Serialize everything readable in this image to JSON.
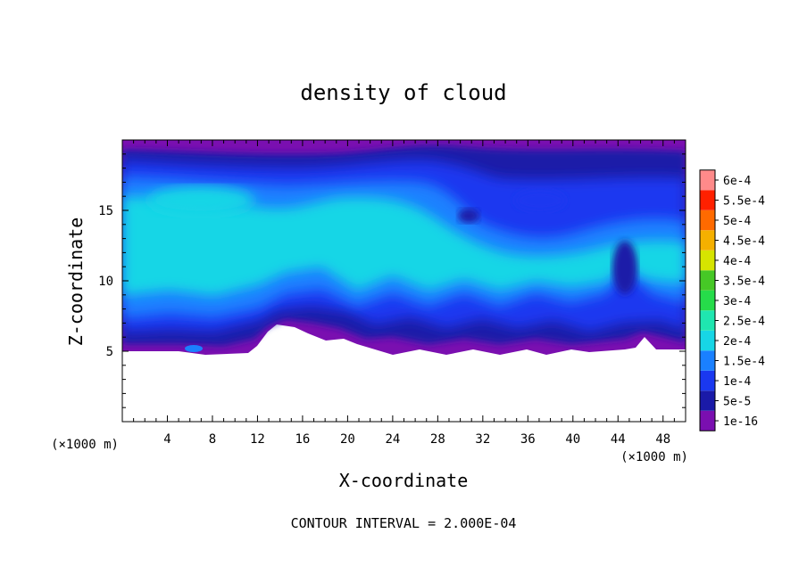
{
  "chart_data": {
    "type": "heatmap",
    "title": "density of cloud",
    "xlabel": "X-coordinate",
    "ylabel": "Z-coordinate",
    "x_unit_left": "(×1000 m)",
    "x_unit_right": "(×1000 m)",
    "xlim": [
      0,
      50
    ],
    "ylim": [
      0,
      20
    ],
    "xticks": [
      "4",
      "8",
      "12",
      "16",
      "20",
      "24",
      "28",
      "32",
      "36",
      "40",
      "44",
      "48"
    ],
    "yticks": [
      "5",
      "10",
      "15"
    ],
    "colorbar": {
      "labels": [
        "1e-16",
        "5e-5",
        "1e-4",
        "1.5e-4",
        "2e-4",
        "2.5e-4",
        "3e-4",
        "3.5e-4",
        "4e-4",
        "4.5e-4",
        "5e-4",
        "5.5e-4",
        "6e-4"
      ],
      "colors": [
        "#7a0fb0",
        "#1a1aa8",
        "#1a38f0",
        "#1a80ff",
        "#17d6e6",
        "#1fe6b0",
        "#26dc4a",
        "#46c826",
        "#d6e400",
        "#f5b000",
        "#ff6a00",
        "#ff2000",
        "#ff8a8a"
      ]
    },
    "footer": "CONTOUR INTERVAL = 2.000E-04",
    "cloud_base_km": 5,
    "cloud_top_km": 20,
    "dominant_level": "2e-4"
  }
}
